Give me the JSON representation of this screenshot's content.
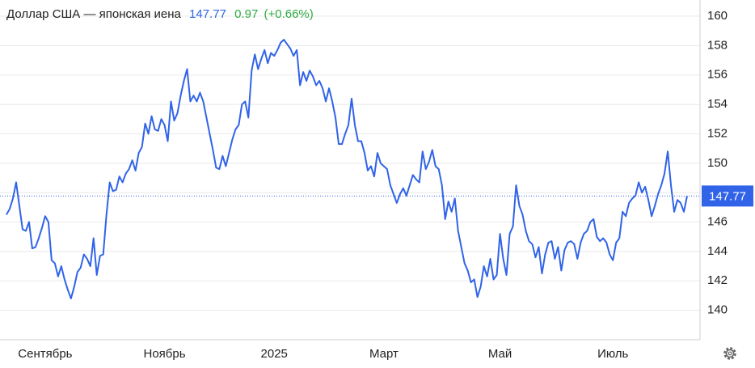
{
  "chart_data": {
    "type": "line",
    "title": "Доллар США — японская иена",
    "price": 147.77,
    "change": 0.97,
    "change_percent": "(+0.66%)",
    "series": [
      {
        "color": "#3063e8",
        "values": [
          146.5,
          146.9,
          147.6,
          148.7,
          147.1,
          145.5,
          145.4,
          146.0,
          144.2,
          144.3,
          144.9,
          145.6,
          146.4,
          146.0,
          143.4,
          143.2,
          142.3,
          143.0,
          142.1,
          141.4,
          140.8,
          141.6,
          142.6,
          142.9,
          143.8,
          143.5,
          143.0,
          144.9,
          142.4,
          143.7,
          143.8,
          146.5,
          148.7,
          148.1,
          148.2,
          149.1,
          148.7,
          149.3,
          149.6,
          150.2,
          149.5,
          150.7,
          151.1,
          152.7,
          152.0,
          153.2,
          152.3,
          152.2,
          153.0,
          152.6,
          151.5,
          154.2,
          152.9,
          153.4,
          154.6,
          155.6,
          156.4,
          154.2,
          154.6,
          154.2,
          154.8,
          154.2,
          153.1,
          152.0,
          150.9,
          149.7,
          149.6,
          150.5,
          149.8,
          150.7,
          151.6,
          152.3,
          152.6,
          154.0,
          154.2,
          153.1,
          156.3,
          157.4,
          156.4,
          157.1,
          157.7,
          156.8,
          157.5,
          157.3,
          157.7,
          158.2,
          158.4,
          158.1,
          157.8,
          157.3,
          157.7,
          155.3,
          156.2,
          155.6,
          156.3,
          155.9,
          155.3,
          155.6,
          155.1,
          154.2,
          155.1,
          154.2,
          153.1,
          151.3,
          151.3,
          152.0,
          152.6,
          154.4,
          152.6,
          151.5,
          151.5,
          150.7,
          149.5,
          149.8,
          149.1,
          150.7,
          150.0,
          149.8,
          149.6,
          148.5,
          147.9,
          147.3,
          147.9,
          148.3,
          147.8,
          148.5,
          149.2,
          148.9,
          148.7,
          150.8,
          149.6,
          150.1,
          150.9,
          149.8,
          149.6,
          148.5,
          146.2,
          147.4,
          146.7,
          147.6,
          145.4,
          144.3,
          143.2,
          142.7,
          141.9,
          142.1,
          140.9,
          141.6,
          143.0,
          142.3,
          143.5,
          142.1,
          142.4,
          145.2,
          143.5,
          142.4,
          145.2,
          145.7,
          148.5,
          147.1,
          146.5,
          145.4,
          144.7,
          144.5,
          143.6,
          144.3,
          142.5,
          143.8,
          144.6,
          144.7,
          143.5,
          144.3,
          142.7,
          144.1,
          144.6,
          144.7,
          144.5,
          143.5,
          144.6,
          145.2,
          145.4,
          146.0,
          146.2,
          145.0,
          144.7,
          144.9,
          144.6,
          143.8,
          143.4,
          144.6,
          144.9,
          146.7,
          146.4,
          147.3,
          147.6,
          147.8,
          148.7,
          148.0,
          148.4,
          147.5,
          146.4,
          147.1,
          147.9,
          148.5,
          149.3,
          150.8,
          148.5,
          146.7,
          147.5,
          147.3,
          146.7,
          147.77
        ]
      }
    ],
    "xlim": [
      0,
      211
    ],
    "xticks": [
      {
        "value": 12,
        "label": "Сентябрь"
      },
      {
        "value": 49,
        "label": "Ноябрь"
      },
      {
        "value": 83,
        "label": "2025"
      },
      {
        "value": 117,
        "label": "Март"
      },
      {
        "value": 153,
        "label": "Май"
      },
      {
        "value": 188,
        "label": "Июль"
      }
    ],
    "ylim": [
      138,
      161.1
    ],
    "yticks": [
      140,
      142,
      144,
      146,
      148,
      150,
      152,
      154,
      156,
      158,
      160
    ],
    "grid": true
  }
}
